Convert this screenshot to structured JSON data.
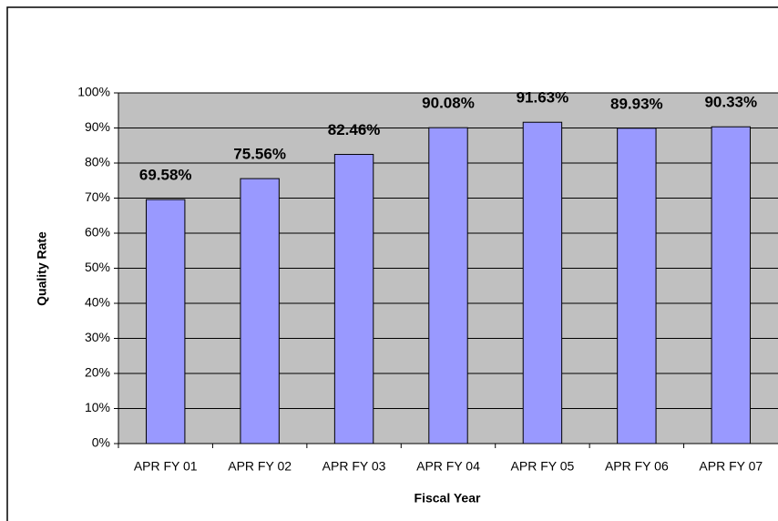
{
  "chart_data": {
    "type": "bar",
    "x_label": "Fiscal Year",
    "y_label": "Quality Rate",
    "categories": [
      "APR FY 01",
      "APR FY 02",
      "APR FY 03",
      "APR FY 04",
      "APR FY 05",
      "APR FY 06",
      "APR FY 07"
    ],
    "values": [
      69.58,
      75.56,
      82.46,
      90.08,
      91.63,
      89.93,
      90.33
    ],
    "value_labels": [
      "69.58%",
      "75.56%",
      "82.46%",
      "90.08%",
      "91.63%",
      "89.93%",
      "90.33%"
    ],
    "color": "#9999ff",
    "plot_background": "#c0c0c0",
    "ylim": [
      0,
      100
    ],
    "yticks": [
      {
        "value": 0,
        "label": "0%"
      },
      {
        "value": 10,
        "label": "10%"
      },
      {
        "value": 20,
        "label": "20%"
      },
      {
        "value": 30,
        "label": "30%"
      },
      {
        "value": 40,
        "label": "40%"
      },
      {
        "value": 50,
        "label": "50%"
      },
      {
        "value": 60,
        "label": "60%"
      },
      {
        "value": 70,
        "label": "70%"
      },
      {
        "value": 80,
        "label": "80%"
      },
      {
        "value": 90,
        "label": "90%"
      },
      {
        "value": 100,
        "label": "100%"
      }
    ],
    "grid": true
  }
}
